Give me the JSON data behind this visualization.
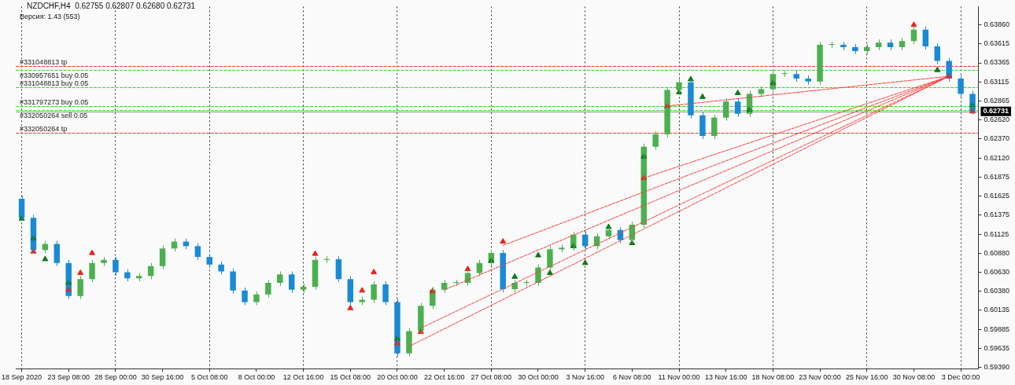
{
  "chart_data": {
    "type": "candlestick",
    "title": "NZDCHF,H4  0.62755 0.62807 0.62680 0.62731",
    "subtitle": "Версия: 1.43 (553)",
    "categories": [
      "18 Sep 2020",
      null,
      null,
      null,
      "23 Sep 08:00",
      null,
      null,
      null,
      "28 Sep 00:00",
      null,
      null,
      null,
      "30 Sep 16:00",
      null,
      null,
      null,
      "5 Oct 08:00",
      null,
      null,
      null,
      "8 Oct 00:00",
      null,
      null,
      null,
      "12 Oct 16:00",
      null,
      null,
      null,
      "15 Oct 08:00",
      null,
      null,
      null,
      "20 Oct 00:00",
      null,
      null,
      null,
      "22 Oct 16:00",
      null,
      null,
      null,
      "27 Oct 08:00",
      null,
      null,
      null,
      "30 Oct 00:00",
      null,
      null,
      null,
      "3 Nov 16:00",
      null,
      null,
      null,
      "6 Nov 08:00",
      null,
      null,
      null,
      "11 Nov 00:00",
      null,
      null,
      null,
      "13 Nov 16:00",
      null,
      null,
      null,
      "18 Nov 08:00",
      null,
      null,
      null,
      "23 Nov 00:00",
      null,
      null,
      null,
      "25 Nov 16:00",
      null,
      null,
      null,
      "30 Nov 08:00",
      null,
      null,
      null,
      "3 Dec 00:00",
      null
    ],
    "series": [
      {
        "type": "candlestick",
        "ohlc": [
          [
            0.6159,
            0.6163,
            0.613,
            0.6134
          ],
          [
            0.6134,
            0.6138,
            0.6088,
            0.6092
          ],
          [
            0.6092,
            0.6104,
            0.6088,
            0.61
          ],
          [
            0.61,
            0.6104,
            0.6071,
            0.6075
          ],
          [
            0.6075,
            0.6079,
            0.6028,
            0.6032
          ],
          [
            0.6032,
            0.6058,
            0.6028,
            0.6054
          ],
          [
            0.6054,
            0.6079,
            0.605,
            0.6075
          ],
          [
            0.6075,
            0.6083,
            0.6071,
            0.6079
          ],
          [
            0.6079,
            0.6083,
            0.6059,
            0.6063
          ],
          [
            0.6063,
            0.6067,
            0.6051,
            0.6055
          ],
          [
            0.6055,
            0.6062,
            0.6051,
            0.6058
          ],
          [
            0.6058,
            0.6075,
            0.6054,
            0.6071
          ],
          [
            0.6071,
            0.6098,
            0.6067,
            0.6094
          ],
          [
            0.6094,
            0.6107,
            0.609,
            0.6103
          ],
          [
            0.6103,
            0.6107,
            0.6093,
            0.6097
          ],
          [
            0.6097,
            0.6101,
            0.6079,
            0.6083
          ],
          [
            0.6083,
            0.6087,
            0.6069,
            0.6073
          ],
          [
            0.6073,
            0.6077,
            0.606,
            0.6064
          ],
          [
            0.6064,
            0.6068,
            0.6035,
            0.6039
          ],
          [
            0.6039,
            0.6043,
            0.602,
            0.6024
          ],
          [
            0.6024,
            0.6038,
            0.602,
            0.6034
          ],
          [
            0.6034,
            0.6053,
            0.603,
            0.6049
          ],
          [
            0.6049,
            0.6064,
            0.6045,
            0.606
          ],
          [
            0.606,
            0.6064,
            0.6036,
            0.604
          ],
          [
            0.604,
            0.6048,
            0.6036,
            0.6044
          ],
          [
            0.6044,
            0.6083,
            0.604,
            0.6079
          ],
          [
            0.6079,
            0.6084,
            0.6075,
            0.608
          ],
          [
            0.608,
            0.6084,
            0.605,
            0.6054
          ],
          [
            0.6054,
            0.6058,
            0.602,
            0.6024
          ],
          [
            0.6024,
            0.6031,
            0.602,
            0.6027
          ],
          [
            0.6027,
            0.6051,
            0.6023,
            0.6047
          ],
          [
            0.6047,
            0.6051,
            0.602,
            0.6024
          ],
          [
            0.6024,
            0.6028,
            0.5953,
            0.5957
          ],
          [
            0.5957,
            0.599,
            0.5953,
            0.5986
          ],
          [
            0.5986,
            0.6023,
            0.5982,
            0.6019
          ],
          [
            0.6019,
            0.6044,
            0.6015,
            0.604
          ],
          [
            0.604,
            0.6053,
            0.6036,
            0.6049
          ],
          [
            0.6049,
            0.6053,
            0.6045,
            0.6049
          ],
          [
            0.6049,
            0.6066,
            0.6045,
            0.6062
          ],
          [
            0.6062,
            0.6079,
            0.6058,
            0.6075
          ],
          [
            0.6075,
            0.6092,
            0.6071,
            0.6088
          ],
          [
            0.6088,
            0.6092,
            0.6037,
            0.6041
          ],
          [
            0.6041,
            0.6053,
            0.6037,
            0.6049
          ],
          [
            0.6049,
            0.6053,
            0.6045,
            0.6049
          ],
          [
            0.6049,
            0.6073,
            0.6045,
            0.6069
          ],
          [
            0.6069,
            0.6097,
            0.6065,
            0.6093
          ],
          [
            0.6093,
            0.6099,
            0.6089,
            0.6095
          ],
          [
            0.6095,
            0.6116,
            0.6091,
            0.6112
          ],
          [
            0.6112,
            0.6116,
            0.6093,
            0.6097
          ],
          [
            0.6097,
            0.6114,
            0.6093,
            0.611
          ],
          [
            0.611,
            0.6122,
            0.6106,
            0.6118
          ],
          [
            0.6118,
            0.6122,
            0.6101,
            0.6105
          ],
          [
            0.6105,
            0.6129,
            0.6101,
            0.6125
          ],
          [
            0.6125,
            0.6231,
            0.6121,
            0.6227
          ],
          [
            0.6227,
            0.6247,
            0.6223,
            0.6243
          ],
          [
            0.6243,
            0.6305,
            0.6239,
            0.6301
          ],
          [
            0.6301,
            0.6315,
            0.6297,
            0.6311
          ],
          [
            0.6311,
            0.6315,
            0.6264,
            0.6268
          ],
          [
            0.6268,
            0.6272,
            0.6237,
            0.6241
          ],
          [
            0.6241,
            0.6269,
            0.6237,
            0.6265
          ],
          [
            0.6265,
            0.629,
            0.6261,
            0.6286
          ],
          [
            0.6286,
            0.629,
            0.6266,
            0.627
          ],
          [
            0.627,
            0.63,
            0.6266,
            0.6296
          ],
          [
            0.6296,
            0.6306,
            0.6292,
            0.6302
          ],
          [
            0.6302,
            0.6326,
            0.6298,
            0.6322
          ],
          [
            0.6322,
            0.6326,
            0.6318,
            0.6322
          ],
          [
            0.6322,
            0.6326,
            0.6312,
            0.6316
          ],
          [
            0.6316,
            0.632,
            0.6308,
            0.6312
          ],
          [
            0.6312,
            0.6364,
            0.6308,
            0.636
          ],
          [
            0.636,
            0.6364,
            0.6356,
            0.636
          ],
          [
            0.636,
            0.6364,
            0.6353,
            0.6357
          ],
          [
            0.6357,
            0.6361,
            0.6348,
            0.6352
          ],
          [
            0.6352,
            0.6361,
            0.6348,
            0.6357
          ],
          [
            0.6357,
            0.6367,
            0.6353,
            0.6363
          ],
          [
            0.6363,
            0.6367,
            0.6353,
            0.6357
          ],
          [
            0.6357,
            0.6369,
            0.6353,
            0.6365
          ],
          [
            0.6365,
            0.6384,
            0.6361,
            0.638
          ],
          [
            0.638,
            0.6384,
            0.6354,
            0.6358
          ],
          [
            0.6358,
            0.6362,
            0.6335,
            0.6339
          ],
          [
            0.6339,
            0.6343,
            0.6312,
            0.6316
          ],
          [
            0.6316,
            0.632,
            0.6292,
            0.6296
          ],
          [
            0.6296,
            0.63,
            0.6269,
            0.6273
          ]
        ],
        "colors": [
          "#1a8ad4",
          "#1a8ad4",
          "#4cb050",
          "#1a8ad4",
          "#1a8ad4",
          "#4cb050",
          "#4cb050",
          "#4cb050",
          "#1a8ad4",
          "#1a8ad4",
          "#4cb050",
          "#4cb050",
          "#4cb050",
          "#4cb050",
          "#1a8ad4",
          "#1a8ad4",
          "#1a8ad4",
          "#1a8ad4",
          "#1a8ad4",
          "#1a8ad4",
          "#4cb050",
          "#4cb050",
          "#4cb050",
          "#1a8ad4",
          "#4cb050",
          "#4cb050",
          "#4cb050",
          "#1a8ad4",
          "#1a8ad4",
          "#4cb050",
          "#4cb050",
          "#1a8ad4",
          "#1a8ad4",
          "#4cb050",
          "#4cb050",
          "#4cb050",
          "#4cb050",
          "#4cb050",
          "#4cb050",
          "#4cb050",
          "#4cb050",
          "#1a8ad4",
          "#4cb050",
          "#4cb050",
          "#4cb050",
          "#4cb050",
          "#4cb050",
          "#4cb050",
          "#1a8ad4",
          "#4cb050",
          "#4cb050",
          "#1a8ad4",
          "#4cb050",
          "#4cb050",
          "#4cb050",
          "#4cb050",
          "#4cb050",
          "#1a8ad4",
          "#1a8ad4",
          "#4cb050",
          "#4cb050",
          "#1a8ad4",
          "#4cb050",
          "#4cb050",
          "#4cb050",
          "#4cb050",
          "#1a8ad4",
          "#1a8ad4",
          "#4cb050",
          "#4cb050",
          "#1a8ad4",
          "#1a8ad4",
          "#4cb050",
          "#4cb050",
          "#1a8ad4",
          "#4cb050",
          "#4cb050",
          "#1a8ad4",
          "#1a8ad4",
          "#1a8ad4",
          "#1a8ad4",
          "#1a8ad4"
        ]
      },
      {
        "type": "scatter",
        "color": "#e8241c",
        "marker": "triangle",
        "values": [
          null,
          0.609,
          null,
          null,
          0.604,
          0.6062,
          0.6088,
          null,
          null,
          null,
          null,
          null,
          null,
          null,
          null,
          null,
          null,
          null,
          null,
          null,
          null,
          null,
          null,
          null,
          null,
          0.6087,
          null,
          null,
          0.6016,
          0.6039,
          0.6063,
          null,
          0.597,
          null,
          0.5985,
          0.6038,
          null,
          null,
          0.6067,
          null,
          null,
          0.6103,
          null,
          null,
          null,
          null,
          null,
          null,
          null,
          null,
          null,
          null,
          null,
          0.6186,
          null,
          0.628,
          null,
          null,
          null,
          null,
          null,
          null,
          null,
          null,
          null,
          null,
          null,
          null,
          null,
          null,
          null,
          null,
          null,
          null,
          null,
          null,
          0.6386,
          null,
          null,
          0.6319,
          null,
          0.6273
        ]
      },
      {
        "type": "scatter",
        "color": "#0f7a1a",
        "marker": "triangle",
        "values": [
          0.6133,
          0.6107,
          0.608,
          null,
          0.6049,
          null,
          null,
          null,
          null,
          null,
          null,
          null,
          null,
          null,
          null,
          null,
          null,
          null,
          null,
          null,
          null,
          null,
          null,
          null,
          null,
          null,
          null,
          null,
          null,
          null,
          null,
          null,
          0.5976,
          null,
          null,
          null,
          null,
          null,
          null,
          null,
          0.6078,
          null,
          0.6057,
          null,
          0.6085,
          0.6062,
          null,
          0.6097,
          0.6075,
          null,
          0.6122,
          null,
          0.6101,
          0.6214,
          null,
          null,
          0.6298,
          0.6315,
          0.6292,
          null,
          null,
          0.6297,
          0.6275,
          null,
          0.631,
          null,
          null,
          null,
          null,
          null,
          null,
          null,
          null,
          null,
          null,
          null,
          null,
          null,
          0.6327,
          null,
          null,
          0.6281
        ]
      },
      {
        "type": "line",
        "color": "#ff3b3b",
        "line_style": "dashed",
        "values": [
          null,
          null,
          null,
          null,
          null,
          null,
          null,
          null,
          null,
          null,
          null,
          null,
          null,
          null,
          null,
          null,
          null,
          null,
          null,
          null,
          null,
          null,
          null,
          null,
          null,
          null,
          null,
          null,
          null,
          null,
          null,
          null,
          null,
          0.5966,
          null,
          null,
          null,
          null,
          null,
          null,
          null,
          null,
          null,
          null,
          null,
          null,
          null,
          null,
          null,
          null,
          null,
          null,
          null,
          null,
          null,
          null,
          null,
          null,
          null,
          null,
          null,
          null,
          null,
          null,
          null,
          null,
          null,
          null,
          null,
          null,
          null,
          null,
          null,
          null,
          null,
          null,
          null,
          null,
          null,
          0.6319,
          null,
          null
        ]
      },
      {
        "type": "line",
        "color": "#ff3b3b",
        "line_style": "dashed",
        "values": [
          null,
          null,
          null,
          null,
          null,
          null,
          null,
          null,
          null,
          null,
          null,
          null,
          null,
          null,
          null,
          null,
          null,
          null,
          null,
          null,
          null,
          null,
          null,
          null,
          null,
          null,
          null,
          null,
          null,
          null,
          null,
          null,
          null,
          null,
          0.599,
          null,
          null,
          null,
          null,
          null,
          null,
          null,
          null,
          null,
          null,
          null,
          null,
          null,
          null,
          null,
          null,
          null,
          null,
          null,
          null,
          null,
          null,
          null,
          null,
          null,
          null,
          null,
          null,
          null,
          null,
          null,
          null,
          null,
          null,
          null,
          null,
          null,
          null,
          null,
          null,
          null,
          null,
          null,
          null,
          0.6319,
          null,
          null
        ]
      },
      {
        "type": "line",
        "color": "#ff3b3b",
        "line_style": "dashed",
        "values": [
          null,
          null,
          null,
          null,
          null,
          null,
          null,
          null,
          null,
          null,
          null,
          null,
          null,
          null,
          null,
          null,
          null,
          null,
          null,
          null,
          null,
          null,
          null,
          null,
          null,
          null,
          null,
          null,
          null,
          null,
          null,
          null,
          null,
          null,
          null,
          null,
          0.604,
          null,
          null,
          null,
          null,
          null,
          null,
          null,
          null,
          null,
          null,
          null,
          null,
          null,
          null,
          null,
          null,
          null,
          null,
          null,
          null,
          null,
          null,
          null,
          null,
          null,
          null,
          null,
          null,
          null,
          null,
          null,
          null,
          null,
          null,
          null,
          null,
          null,
          null,
          null,
          null,
          null,
          null,
          0.6319,
          null,
          null
        ]
      },
      {
        "type": "line",
        "color": "#ff3b3b",
        "line_style": "dashed",
        "values": [
          null,
          null,
          null,
          null,
          null,
          null,
          null,
          null,
          null,
          null,
          null,
          null,
          null,
          null,
          null,
          null,
          null,
          null,
          null,
          null,
          null,
          null,
          null,
          null,
          null,
          null,
          null,
          null,
          null,
          null,
          null,
          null,
          null,
          null,
          null,
          null,
          null,
          null,
          null,
          null,
          null,
          0.6098,
          null,
          null,
          null,
          null,
          null,
          null,
          null,
          null,
          null,
          null,
          null,
          null,
          null,
          null,
          null,
          null,
          null,
          null,
          null,
          null,
          null,
          null,
          null,
          null,
          null,
          null,
          null,
          null,
          null,
          null,
          null,
          null,
          null,
          null,
          null,
          null,
          null,
          0.6319,
          null,
          null
        ]
      },
      {
        "type": "line",
        "color": "#ff3b3b",
        "line_style": "dashed",
        "values": [
          null,
          null,
          null,
          null,
          null,
          null,
          null,
          null,
          null,
          null,
          null,
          null,
          null,
          null,
          null,
          null,
          null,
          null,
          null,
          null,
          null,
          null,
          null,
          null,
          null,
          null,
          null,
          null,
          null,
          null,
          null,
          null,
          null,
          null,
          null,
          null,
          null,
          null,
          null,
          null,
          null,
          null,
          null,
          null,
          null,
          null,
          null,
          null,
          null,
          null,
          null,
          null,
          null,
          0.6186,
          null,
          null,
          null,
          null,
          null,
          null,
          null,
          null,
          null,
          null,
          null,
          null,
          null,
          null,
          null,
          null,
          null,
          null,
          null,
          null,
          null,
          null,
          null,
          null,
          null,
          0.6319,
          null,
          null
        ]
      },
      {
        "type": "line",
        "color": "#ff3b3b",
        "line_style": "dashed",
        "values": [
          null,
          null,
          null,
          null,
          null,
          null,
          null,
          null,
          null,
          null,
          null,
          null,
          null,
          null,
          null,
          null,
          null,
          null,
          null,
          null,
          null,
          null,
          null,
          null,
          null,
          null,
          null,
          null,
          null,
          null,
          null,
          null,
          null,
          null,
          null,
          null,
          null,
          null,
          null,
          null,
          null,
          null,
          null,
          null,
          null,
          null,
          null,
          null,
          null,
          null,
          null,
          null,
          null,
          null,
          null,
          0.628,
          null,
          null,
          null,
          null,
          null,
          null,
          null,
          null,
          null,
          null,
          null,
          null,
          null,
          null,
          null,
          null,
          null,
          null,
          null,
          null,
          null,
          null,
          null,
          0.6319,
          null,
          null
        ]
      }
    ],
    "ylim": [
      0.5937,
      0.641
    ],
    "yticks": [
      {
        "value": 0.6386,
        "label": "0.63860"
      },
      {
        "value": 0.63615,
        "label": "0.63615"
      },
      {
        "value": 0.63365,
        "label": "0.63365"
      },
      {
        "value": 0.63115,
        "label": "0.63115"
      },
      {
        "value": 0.62865,
        "label": "0.62865"
      },
      {
        "value": 0.6262,
        "label": "0.62620"
      },
      {
        "value": 0.6237,
        "label": "0.62370"
      },
      {
        "value": 0.6212,
        "label": "0.62120"
      },
      {
        "value": 0.61875,
        "label": "0.61875"
      },
      {
        "value": 0.61625,
        "label": "0.61625"
      },
      {
        "value": 0.61375,
        "label": "0.61375"
      },
      {
        "value": 0.61125,
        "label": "0.61125"
      },
      {
        "value": 0.6088,
        "label": "0.60880"
      },
      {
        "value": 0.6063,
        "label": "0.60630"
      },
      {
        "value": 0.6038,
        "label": "0.60380"
      },
      {
        "value": 0.60135,
        "label": "0.60135"
      },
      {
        "value": 0.59885,
        "label": "0.59885"
      },
      {
        "value": 0.59635,
        "label": "0.59635"
      },
      {
        "value": 0.5939,
        "label": "0.59390"
      }
    ],
    "ref_lines": [
      {
        "axis": "y",
        "value": 0.6332,
        "label": "#331048813 tp",
        "color": "#ff3030",
        "line_style": "dashed"
      },
      {
        "axis": "y",
        "value": 0.6327,
        "label": "#330957651 buy 0.05",
        "color": "#3ecf3e",
        "line_style": "dashed"
      },
      {
        "axis": "y",
        "value": 0.6305,
        "label": "#331048813 buy 0.05",
        "color": "#3ecf3e",
        "line_style": "dashed"
      },
      {
        "axis": "y",
        "value": 0.628,
        "label": "#331797273 buy 0.05",
        "color": "#3ecf3e",
        "line_style": "dashed"
      },
      {
        "axis": "y",
        "value": 0.6275,
        "label": "#332050264 sell 0.05",
        "color": "#3ecf3e",
        "line_style": "dashed"
      },
      {
        "axis": "y",
        "value": 0.62731,
        "label": "0.62731",
        "color": "#8c8c8c",
        "line_style": "solid"
      },
      {
        "axis": "y",
        "value": 0.6245,
        "label": "#332050264 tp",
        "color": "#ff3030",
        "line_style": "dashed"
      }
    ],
    "grid": "x",
    "legend": false
  }
}
